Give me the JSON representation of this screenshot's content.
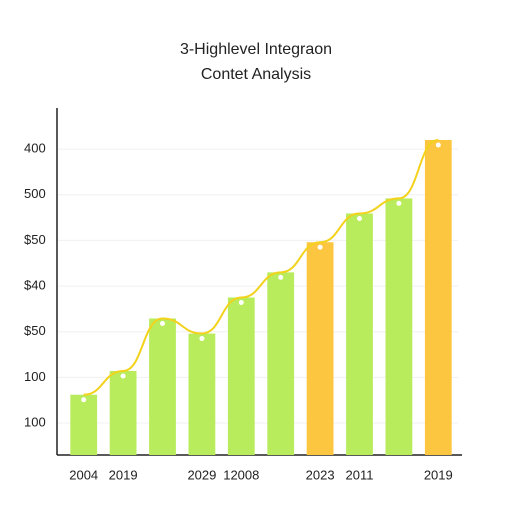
{
  "chart_data": {
    "type": "bar",
    "title": "3-Highlevel Integraon",
    "subtitle": "Contet Analysis",
    "categories": [
      "2004",
      "2019",
      null,
      "2029",
      "12008",
      null,
      "2023",
      "2011",
      null,
      "2019"
    ],
    "values": [
      1.62,
      2.14,
      3.29,
      2.96,
      3.75,
      4.3,
      4.96,
      5.59,
      5.92,
      7.2
    ],
    "colors": [
      "#b8ec5c",
      "#b8ec5c",
      "#b8ec5c",
      "#b8ec5c",
      "#b8ec5c",
      "#b8ec5c",
      "#fdc640",
      "#b8ec5c",
      "#b8ec5c",
      "#fdc640"
    ],
    "line_color": "#f2d21c",
    "ylim": [
      0.3,
      7.9
    ],
    "yticks": [
      {
        "value": 1,
        "label": "100"
      },
      {
        "value": 2,
        "label": "100"
      },
      {
        "value": 3,
        "label": "$50"
      },
      {
        "value": 4,
        "label": "$40"
      },
      {
        "value": 5,
        "label": "$50"
      },
      {
        "value": 6,
        "label": "500"
      },
      {
        "value": 7,
        "label": "400"
      }
    ],
    "grid": true
  }
}
